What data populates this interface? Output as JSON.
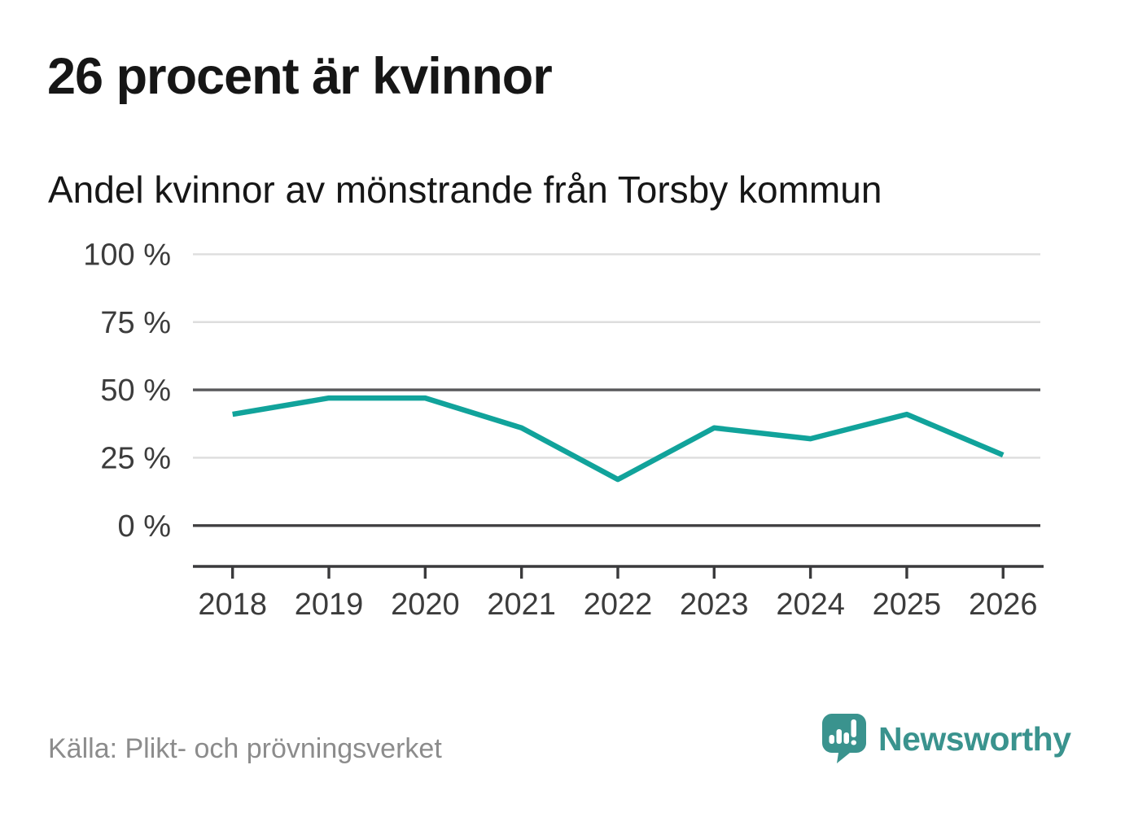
{
  "page": {
    "title": "26 procent är kvinnor",
    "subtitle": "Andel kvinnor av mönstrande från Torsby kommun",
    "source": "Källa: Plikt- och prövningsverket",
    "brand": "Newsworthy"
  },
  "colors": {
    "line": "#11a39b",
    "brand_teal": "#3a938e",
    "grid_light": "#dddddd",
    "grid_fifty": "#59595b",
    "grid_zero": "#403f41",
    "axis": "#3a3a3c",
    "axis_text": "#3c3c3c",
    "title_text": "#161616",
    "source_text": "#8c8c8c"
  },
  "chart_data": {
    "type": "line",
    "title": "26 procent är kvinnor",
    "subtitle": "Andel kvinnor av mönstrande från Torsby kommun",
    "x": [
      2018,
      2019,
      2020,
      2021,
      2022,
      2023,
      2024,
      2025,
      2026
    ],
    "series": [
      {
        "name": "Andel kvinnor av mönstrande",
        "values": [
          41,
          47,
          47,
          36,
          17,
          36,
          32,
          41,
          26
        ]
      }
    ],
    "unit": "%",
    "ylim": [
      0,
      100
    ],
    "y_ticks": [
      0,
      25,
      50,
      75,
      100
    ],
    "y_tick_suffix": " %",
    "emphasized_gridlines": [
      0,
      50
    ],
    "grid": "horizontal",
    "legend": "none",
    "source": "Källa: Plikt- och prövningsverket"
  }
}
